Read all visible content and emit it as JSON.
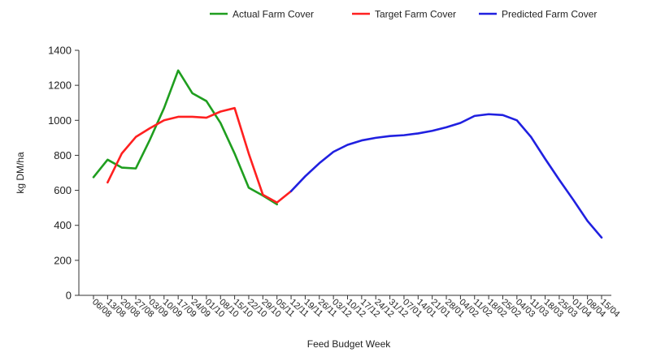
{
  "chart_data": {
    "type": "line",
    "title": "",
    "xlabel": "Feed Budget Week",
    "ylabel": "kg DM/ha",
    "ylim": [
      0,
      1400
    ],
    "yticks": [
      0,
      200,
      400,
      600,
      800,
      1000,
      1200,
      1400
    ],
    "grid": false,
    "legend_position": "top-right",
    "categories": [
      "06/08",
      "13/08",
      "20/08",
      "27/08",
      "03/09",
      "10/09",
      "17/09",
      "24/09",
      "01/10",
      "08/10",
      "15/10",
      "22/10",
      "29/10",
      "05/11",
      "12/11",
      "19/11",
      "26/11",
      "03/12",
      "10/12",
      "17/12",
      "24/12",
      "31/12",
      "07/01",
      "14/01",
      "21/01",
      "28/01",
      "04/02",
      "11/02",
      "18/02",
      "25/02",
      "04/03",
      "11/03",
      "18/03",
      "25/03",
      "01/04",
      "08/04",
      "15/04"
    ],
    "series": [
      {
        "name": "Actual Farm Cover",
        "color": "#1f9e1f",
        "values": [
          675,
          775,
          730,
          725,
          890,
          1070,
          1285,
          1155,
          1110,
          985,
          810,
          615,
          570,
          520,
          null,
          null,
          null,
          null,
          null,
          null,
          null,
          null,
          null,
          null,
          null,
          null,
          null,
          null,
          null,
          null,
          null,
          null,
          null,
          null,
          null,
          null,
          null
        ]
      },
      {
        "name": "Target Farm Cover",
        "color": "#ff2020",
        "values": [
          null,
          645,
          810,
          905,
          955,
          1000,
          1020,
          1020,
          1015,
          1050,
          1070,
          810,
          575,
          530,
          595,
          null,
          null,
          null,
          null,
          null,
          null,
          null,
          null,
          null,
          null,
          null,
          null,
          null,
          null,
          null,
          null,
          null,
          null,
          null,
          null,
          null,
          null
        ]
      },
      {
        "name": "Predicted Farm Cover",
        "color": "#2020e0",
        "values": [
          null,
          null,
          null,
          null,
          null,
          null,
          null,
          null,
          null,
          null,
          null,
          null,
          null,
          null,
          595,
          680,
          755,
          820,
          860,
          885,
          900,
          910,
          915,
          925,
          940,
          960,
          985,
          1025,
          1035,
          1030,
          1000,
          905,
          780,
          660,
          545,
          425,
          330
        ]
      }
    ]
  }
}
